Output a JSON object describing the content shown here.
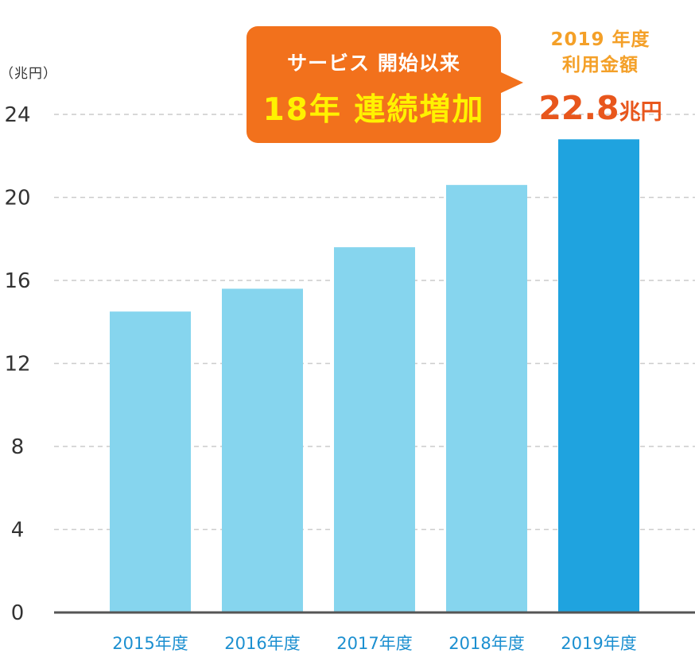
{
  "chart_data": {
    "type": "bar",
    "unit_label": "（兆円）",
    "categories": [
      "2015年度",
      "2016年度",
      "2017年度",
      "2018年度",
      "2019年度"
    ],
    "values": [
      14.5,
      15.6,
      17.6,
      20.6,
      22.8
    ],
    "ylim": [
      0,
      24
    ],
    "yticks": [
      0,
      4,
      8,
      12,
      16,
      20,
      24
    ],
    "grid": true,
    "bar_color": "#86d5ee",
    "highlight_color": "#1fa3df",
    "highlight_index": 4,
    "axis_color": "#555555",
    "grid_color": "#cccccc",
    "tick_label_color": "#333333",
    "category_label_color": "#1b8fd0"
  },
  "callout": {
    "line1": "サービス 開始以来",
    "line2": "18年 連続増加",
    "bg_color": "#f2711c"
  },
  "highlight": {
    "line1": "2019 年度",
    "line2": "利用金額",
    "value": "22.8",
    "unit": "兆円"
  }
}
